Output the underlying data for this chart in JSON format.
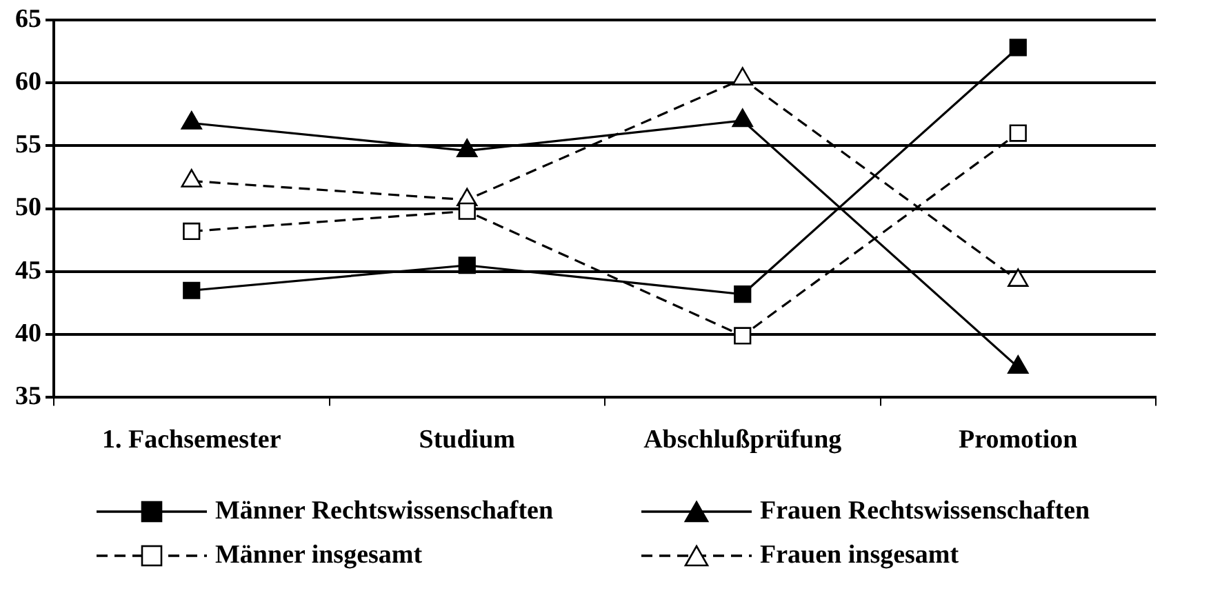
{
  "chart_data": {
    "type": "line",
    "categories": [
      "1. Fachsemester",
      "Studium",
      "Abschlußprüfung",
      "Promotion"
    ],
    "series": [
      {
        "name": "Männer Rechtswissenschaften",
        "color": "#000000",
        "marker": "square",
        "line_style": "solid",
        "values": [
          43.5,
          45.5,
          43.2,
          62.8
        ]
      },
      {
        "name": "Frauen Rechtswissenschaften",
        "color": "#000000",
        "marker": "triangle",
        "line_style": "solid",
        "values": [
          56.8,
          54.6,
          57.0,
          37.4
        ]
      },
      {
        "name": "Männer insgesamt",
        "color": "#000000",
        "marker": "square",
        "line_style": "dashed",
        "values": [
          48.2,
          49.8,
          39.9,
          56.0
        ]
      },
      {
        "name": "Frauen insgesamt",
        "color": "#000000",
        "marker": "triangle",
        "line_style": "dashed",
        "values": [
          52.2,
          50.7,
          60.3,
          44.3
        ]
      }
    ],
    "ylim": [
      35,
      65
    ],
    "yticks": [
      35,
      40,
      45,
      50,
      55,
      60,
      65
    ],
    "grid": "y",
    "legend": "bottom"
  }
}
